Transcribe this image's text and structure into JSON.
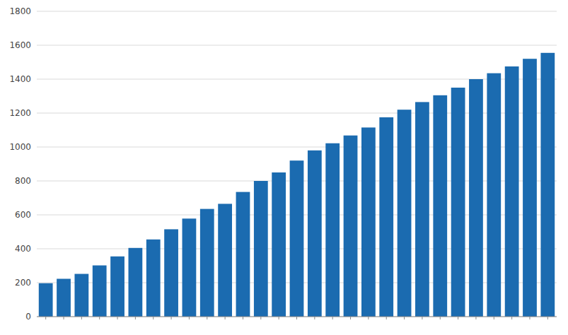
{
  "chart_data": {
    "type": "bar",
    "categories": [
      null,
      null,
      null,
      null,
      null,
      null,
      null,
      null,
      null,
      null,
      null,
      null,
      null,
      null,
      null,
      null,
      null,
      null,
      null,
      null,
      null,
      null,
      null,
      null,
      null,
      null,
      null,
      null,
      null
    ],
    "values": [
      197,
      223,
      252,
      302,
      355,
      405,
      455,
      515,
      578,
      635,
      665,
      735,
      800,
      850,
      920,
      980,
      1022,
      1068,
      1115,
      1175,
      1220,
      1265,
      1305,
      1350,
      1400,
      1435,
      1475,
      1520,
      1555
    ],
    "color": "#1B6BB0",
    "ylim": [
      0,
      1800
    ],
    "yticks": [
      0,
      200,
      400,
      600,
      800,
      1000,
      1200,
      1400,
      1600,
      1800
    ],
    "grid": true,
    "tick_labels": "y"
  }
}
